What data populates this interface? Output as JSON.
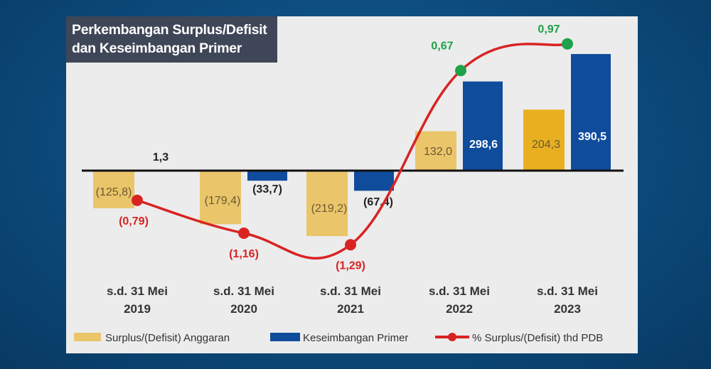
{
  "chart_data": {
    "type": "bar",
    "title": "Perkembangan Surplus/Defisit dan Keseimbangan Primer",
    "categories": [
      [
        "s.d. 31 Mei",
        "2019"
      ],
      [
        "s.d. 31 Mei",
        "2020"
      ],
      [
        "s.d. 31 Mei",
        "2021"
      ],
      [
        "s.d. 31 Mei",
        "2022"
      ],
      [
        "s.d. 31 Mei",
        "2023"
      ]
    ],
    "series": [
      {
        "name": "Surplus/(Defisit) Anggaran",
        "type": "bar",
        "color": "#eac56a",
        "values": [
          -125.8,
          -179.4,
          -219.2,
          132.0,
          204.3
        ],
        "labels": [
          "(125,8)",
          "(179,4)",
          "(219,2)",
          "132,0",
          "204,3"
        ]
      },
      {
        "name": "Keseimbangan Primer",
        "type": "bar",
        "color": "#0f4c9c",
        "values": [
          1.3,
          -33.7,
          -67.4,
          298.6,
          390.5
        ],
        "labels": [
          "1,3",
          "(33,7)",
          "(67,4)",
          "298,6",
          "390,5"
        ]
      },
      {
        "name": "% Surplus/(Defisit) thd PDB",
        "type": "line",
        "color": "#d92323",
        "values": [
          -0.79,
          -1.16,
          -1.29,
          0.67,
          0.97
        ],
        "labels": [
          "(0,79)",
          "(1,16)",
          "(1,29)",
          "0,67",
          "0,97"
        ]
      }
    ],
    "xlabel": "",
    "ylabel": "",
    "legend": "bottom"
  }
}
